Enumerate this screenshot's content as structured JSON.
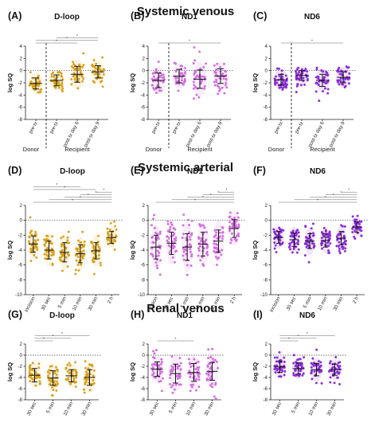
{
  "sections": [
    {
      "id": "systemic-venous",
      "title": "Systemic venous"
    },
    {
      "id": "systemic-arterial",
      "title": "Systemic arterial"
    },
    {
      "id": "renal-venous",
      "title": "Renal venous"
    }
  ],
  "colors": {
    "dloop": "#d9a21b",
    "nd1": "#d26ee0",
    "nd6": "#8a2bd8"
  },
  "group_labels": {
    "donor": "Donor",
    "recipient": "Recipient"
  },
  "chart_data": [
    {
      "panel": "(A)",
      "title": "D-loop",
      "type": "scatter",
      "section": "systemic-venous",
      "color_key": "dloop",
      "ylabel": "log SQ",
      "ylim": [
        -8,
        4
      ],
      "yticks": [
        -8,
        -6,
        -4,
        -2,
        0,
        2,
        4
      ],
      "categories": [
        "pre-tx",
        "pre-tx",
        "post-tx day 6",
        "post-tx day 9"
      ],
      "means": [
        -2.1,
        -1.6,
        -0.6,
        -0.2
      ],
      "sds": [
        0.9,
        0.9,
        1.3,
        1.0
      ],
      "groups": [
        {
          "label": "Donor",
          "from": 0,
          "to": 0
        },
        {
          "label": "Recipient",
          "from": 1,
          "to": 3
        }
      ],
      "separator_after": 0,
      "brackets": [
        [
          0,
          2
        ],
        [
          0,
          3
        ],
        [
          1,
          3
        ]
      ]
    },
    {
      "panel": "(B)",
      "title": "ND1",
      "type": "scatter",
      "section": "systemic-venous",
      "color_key": "nd1",
      "ylabel": "log SQ",
      "ylim": [
        -8,
        4
      ],
      "yticks": [
        -8,
        -6,
        -4,
        -2,
        0,
        2,
        4
      ],
      "categories": [
        "pre-tx",
        "pre-tx",
        "post-tx day 6",
        "post-tx day 9"
      ],
      "means": [
        -1.6,
        -0.9,
        -1.4,
        -0.9
      ],
      "sds": [
        1.2,
        1.1,
        1.5,
        1.2
      ],
      "groups": [
        {
          "label": "Donor",
          "from": 0,
          "to": 0
        },
        {
          "label": "Recipient",
          "from": 1,
          "to": 3
        }
      ],
      "separator_after": 0,
      "brackets": [
        [
          0,
          3
        ]
      ]
    },
    {
      "panel": "(C)",
      "title": "ND6",
      "type": "scatter",
      "section": "systemic-venous",
      "color_key": "nd6",
      "ylabel": "log SQ",
      "ylim": [
        -8,
        4
      ],
      "yticks": [
        -8,
        -6,
        -4,
        -2,
        0,
        2,
        4
      ],
      "categories": [
        "pre-tx",
        "pre-tx",
        "post-tx day 6",
        "post-tx day 9"
      ],
      "means": [
        -1.5,
        -0.8,
        -1.6,
        -1.1
      ],
      "sds": [
        0.9,
        0.8,
        1.0,
        0.9
      ],
      "groups": [
        {
          "label": "Donor",
          "from": 0,
          "to": 0
        },
        {
          "label": "Recipient",
          "from": 1,
          "to": 3
        }
      ],
      "separator_after": 0,
      "brackets": [
        [
          0,
          3
        ]
      ]
    },
    {
      "panel": "(D)",
      "title": "D-loop",
      "type": "scatter",
      "section": "systemic-arterial",
      "color_key": "dloop",
      "ylabel": "log SQ",
      "ylim": [
        -10,
        2
      ],
      "yticks": [
        -10,
        -8,
        -6,
        -4,
        -2,
        0,
        2
      ],
      "categories": [
        "incision",
        "30 sec",
        "5 min",
        "10 min",
        "30 min",
        "2 h"
      ],
      "means": [
        -3.2,
        -4.0,
        -4.3,
        -4.5,
        -4.1,
        -2.3
      ],
      "sds": [
        1.1,
        1.2,
        1.3,
        1.2,
        1.1,
        0.8
      ],
      "brackets": [
        [
          0,
          5
        ],
        [
          1,
          5
        ],
        [
          2,
          5
        ],
        [
          3,
          5
        ],
        [
          4,
          5
        ],
        [
          0,
          4
        ],
        [
          0,
          3
        ]
      ]
    },
    {
      "panel": "(E)",
      "title": "ND1",
      "type": "scatter",
      "section": "systemic-arterial",
      "color_key": "nd1",
      "ylabel": "log SQ",
      "ylim": [
        -10,
        2
      ],
      "yticks": [
        -10,
        -8,
        -6,
        -4,
        -2,
        0,
        2
      ],
      "categories": [
        "incision",
        "30 sec",
        "5 min",
        "10 min",
        "30 min",
        "2 h"
      ],
      "means": [
        -3.6,
        -3.1,
        -3.6,
        -3.2,
        -2.8,
        -1.1
      ],
      "sds": [
        1.6,
        1.5,
        1.8,
        1.6,
        1.5,
        1.2
      ],
      "brackets": [
        [
          0,
          5
        ],
        [
          1,
          5
        ],
        [
          2,
          5
        ],
        [
          3,
          5
        ],
        [
          4,
          5
        ]
      ]
    },
    {
      "panel": "(F)",
      "title": "ND6",
      "type": "scatter",
      "section": "systemic-arterial",
      "color_key": "nd6",
      "ylabel": "log SQ",
      "ylim": [
        -10,
        2
      ],
      "yticks": [
        -10,
        -8,
        -6,
        -4,
        -2,
        0,
        2
      ],
      "categories": [
        "incision",
        "30 sec",
        "5 min",
        "10 min",
        "30 min",
        "2 h"
      ],
      "means": [
        -2.3,
        -2.6,
        -2.8,
        -2.7,
        -2.4,
        -0.9
      ],
      "sds": [
        0.8,
        0.9,
        1.0,
        0.9,
        0.9,
        0.7
      ],
      "brackets": [
        [
          0,
          5
        ],
        [
          1,
          5
        ],
        [
          2,
          5
        ],
        [
          3,
          5
        ],
        [
          4,
          5
        ]
      ]
    },
    {
      "panel": "(G)",
      "title": "D-loop",
      "type": "scatter",
      "section": "renal-venous",
      "color_key": "dloop",
      "ylabel": "log SQ",
      "ylim": [
        -8,
        2
      ],
      "yticks": [
        -8,
        -6,
        -4,
        -2,
        0,
        2
      ],
      "categories": [
        "30 sec",
        "5 min",
        "10 min",
        "30 min"
      ],
      "means": [
        -3.6,
        -4.1,
        -3.7,
        -4.0
      ],
      "sds": [
        1.2,
        1.3,
        1.1,
        1.4
      ],
      "brackets": [
        [
          0,
          1
        ],
        [
          0,
          2
        ],
        [
          0,
          3
        ]
      ]
    },
    {
      "panel": "(H)",
      "title": "ND1",
      "type": "scatter",
      "section": "renal-venous",
      "color_key": "nd1",
      "ylabel": "log SQ",
      "ylim": [
        -8,
        2
      ],
      "yticks": [
        -8,
        -6,
        -4,
        -2,
        0,
        2
      ],
      "categories": [
        "30 sec",
        "5 min",
        "10 min",
        "30 min"
      ],
      "means": [
        -2.5,
        -3.3,
        -3.1,
        -2.9
      ],
      "sds": [
        1.3,
        1.7,
        1.6,
        1.6
      ],
      "brackets": [
        [
          0,
          2
        ]
      ]
    },
    {
      "panel": "(I)",
      "title": "ND6",
      "type": "scatter",
      "section": "renal-venous",
      "color_key": "nd6",
      "ylabel": "log SQ",
      "ylim": [
        -8,
        2
      ],
      "yticks": [
        -8,
        -6,
        -4,
        -2,
        0,
        2
      ],
      "categories": [
        "30 sec",
        "5 min",
        "10 min",
        "30 min"
      ],
      "means": [
        -2.1,
        -2.4,
        -2.6,
        -2.6
      ],
      "sds": [
        1.0,
        1.0,
        1.1,
        1.0
      ],
      "brackets": [
        [
          0,
          1
        ],
        [
          0,
          2
        ],
        [
          0,
          3
        ]
      ]
    }
  ]
}
